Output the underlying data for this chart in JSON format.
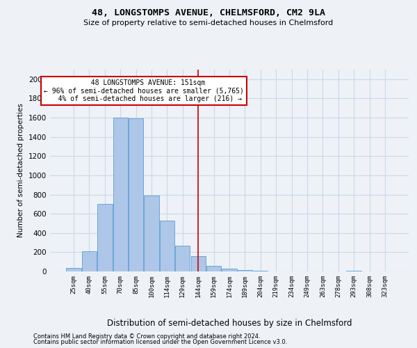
{
  "title_line1": "48, LONGSTOMPS AVENUE, CHELMSFORD, CM2 9LA",
  "title_line2": "Size of property relative to semi-detached houses in Chelmsford",
  "xlabel": "Distribution of semi-detached houses by size in Chelmsford",
  "ylabel": "Number of semi-detached properties",
  "footnote1": "Contains HM Land Registry data © Crown copyright and database right 2024.",
  "footnote2": "Contains public sector information licensed under the Open Government Licence v3.0.",
  "categories": [
    "25sqm",
    "40sqm",
    "55sqm",
    "70sqm",
    "85sqm",
    "100sqm",
    "114sqm",
    "129sqm",
    "144sqm",
    "159sqm",
    "174sqm",
    "189sqm",
    "204sqm",
    "219sqm",
    "234sqm",
    "249sqm",
    "263sqm",
    "278sqm",
    "293sqm",
    "308sqm",
    "323sqm"
  ],
  "values": [
    35,
    210,
    700,
    1600,
    1590,
    790,
    530,
    270,
    160,
    55,
    30,
    15,
    10,
    0,
    0,
    0,
    0,
    0,
    10,
    0,
    0
  ],
  "bar_color": "#aec6e8",
  "bar_edge_color": "#5a9fd4",
  "property_bin_index": 8,
  "property_label": "48 LONGSTOMPS AVENUE: 151sqm",
  "smaller_pct": 96,
  "smaller_count": 5765,
  "larger_pct": 4,
  "larger_count": 216,
  "annotation_box_color": "#cc0000",
  "vline_color": "#cc0000",
  "ylim": [
    0,
    2100
  ],
  "yticks": [
    0,
    200,
    400,
    600,
    800,
    1000,
    1200,
    1400,
    1600,
    1800,
    2000
  ],
  "grid_color": "#c8d8e8",
  "background_color": "#eef2f7"
}
